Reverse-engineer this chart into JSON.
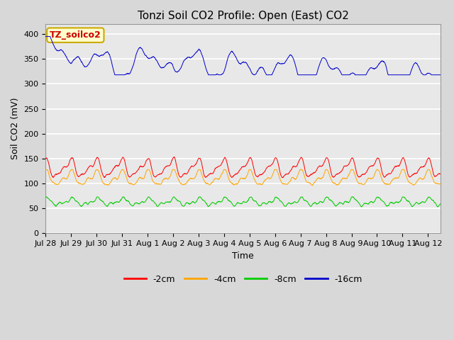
{
  "title": "Tonzi Soil CO2 Profile: Open (East) CO2",
  "ylabel": "Soil CO2 (mV)",
  "xlabel": "Time",
  "ylim": [
    0,
    420
  ],
  "yticks": [
    0,
    50,
    100,
    150,
    200,
    250,
    300,
    350,
    400
  ],
  "xtick_labels": [
    "Jul 28",
    "Jul 29",
    "Jul 30",
    "Jul 31",
    "Aug 1",
    "Aug 2",
    "Aug 3",
    "Aug 4",
    "Aug 5",
    "Aug 6",
    "Aug 7",
    "Aug 8",
    "Aug 9",
    "Aug 10",
    "Aug 11",
    "Aug 12"
  ],
  "bg_color": "#d8d8d8",
  "plot_bg_color": "#e8e8e8",
  "grid_color": "#ffffff",
  "series_colors": [
    "#ff0000",
    "#ffa500",
    "#00cc00",
    "#0000cc"
  ],
  "series_labels": [
    "-2cm",
    "-4cm",
    "-8cm",
    "-16cm"
  ],
  "annotation_text": "TZ_soilco2",
  "annotation_bg": "#ffffcc",
  "annotation_border": "#ccaa00",
  "annotation_text_color": "#cc0000",
  "title_fontsize": 11,
  "label_fontsize": 9,
  "tick_fontsize": 8,
  "legend_fontsize": 9,
  "n_points": 3000,
  "seed": 42
}
